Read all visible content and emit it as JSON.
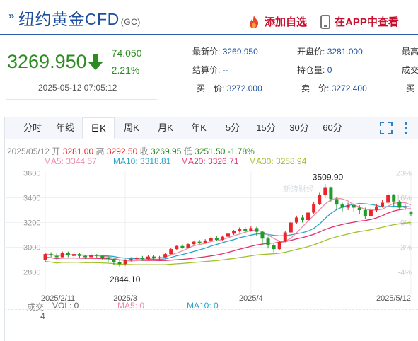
{
  "header": {
    "title": "纽约黄金CFD",
    "code": "(GC)",
    "add_watch_label": "添加自选",
    "app_view_label": "在APP中查看"
  },
  "quote": {
    "price": "3269.950",
    "change": "-74.050",
    "change_pct": "-2.21%",
    "timestamp": "2025-05-12 07:05:12"
  },
  "stats": {
    "latest_label": "最新价:",
    "latest_value": "3269.950",
    "open_label": "开盘价:",
    "open_value": "3281.000",
    "high_label": "最高",
    "settle_label": "结算价:",
    "settle_value": "--",
    "oi_label": "持仓量:",
    "oi_value": "0",
    "deal_label": "成交",
    "buy_label": "买　价:",
    "buy_value": "3272.000",
    "sell_label": "卖　价:",
    "sell_value": "3272.400",
    "buy2_label": "买"
  },
  "tabs": [
    "分时",
    "年线",
    "日K",
    "周K",
    "月K",
    "年K",
    "5分",
    "15分",
    "30分",
    "60分"
  ],
  "active_tab": "日K",
  "ohlc": {
    "date": "2025/05/12",
    "open_label": "开",
    "open": "3281.00",
    "high_label": "高",
    "high": "3292.50",
    "close_label": "收",
    "close": "3269.95",
    "low_label": "低",
    "low": "3251.50",
    "pct": "-1.78%"
  },
  "ma_legend": {
    "ma5": "MA5: 3344.57",
    "ma10": "MA10: 3318.81",
    "ma20": "MA20: 3326.71",
    "ma30": "MA30: 3258.94"
  },
  "colors": {
    "up": "#e8272d",
    "down": "#1e9b2a",
    "ma5": "#f08aa6",
    "ma10": "#29a6c9",
    "ma20": "#e0306b",
    "ma30": "#a0c12a",
    "brand": "#1d4f9c"
  },
  "watermark": "新浪财经",
  "volume": {
    "deal_label": "成交",
    "vol": "VOL: 0",
    "ma5": "MA5: 0",
    "ma10": "MA10: 0",
    "unit_value": "4"
  },
  "chart_data": {
    "type": "candlestick",
    "y_ticks": [
      "3600",
      "3400",
      "3200",
      "3000",
      "2800"
    ],
    "y_pct_ticks": [
      "23%",
      "16%",
      "9%",
      "3%",
      "-4%"
    ],
    "x_ticks": [
      "2025/2/11",
      "2025/3",
      "2025/4",
      "2025/5/12"
    ],
    "ylim": [
      2700,
      3620
    ],
    "annotations": [
      {
        "label": "3509.90",
        "value": 3509.9
      },
      {
        "label": "2844.10",
        "value": 2844.1
      }
    ],
    "candles": [
      [
        2900,
        2945,
        2955,
        2880
      ],
      [
        2945,
        2935,
        2960,
        2920
      ],
      [
        2930,
        2920,
        2950,
        2900
      ],
      [
        2920,
        2955,
        2965,
        2910
      ],
      [
        2955,
        2935,
        2965,
        2920
      ],
      [
        2930,
        2945,
        2950,
        2915
      ],
      [
        2945,
        2930,
        2955,
        2915
      ],
      [
        2930,
        2920,
        2940,
        2905
      ],
      [
        2920,
        2940,
        2950,
        2910
      ],
      [
        2940,
        2930,
        2945,
        2915
      ],
      [
        2930,
        2915,
        2940,
        2900
      ],
      [
        2915,
        2905,
        2930,
        2880
      ],
      [
        2905,
        2880,
        2915,
        2860
      ],
      [
        2880,
        2865,
        2895,
        2844
      ],
      [
        2865,
        2895,
        2905,
        2850
      ],
      [
        2895,
        2905,
        2920,
        2885
      ],
      [
        2905,
        2915,
        2925,
        2895
      ],
      [
        2915,
        2905,
        2930,
        2890
      ],
      [
        2905,
        2925,
        2935,
        2895
      ],
      [
        2925,
        2910,
        2935,
        2900
      ],
      [
        2910,
        2920,
        2930,
        2900
      ],
      [
        2920,
        2945,
        2955,
        2910
      ],
      [
        2945,
        2985,
        2995,
        2935
      ],
      [
        2985,
        3010,
        3020,
        2975
      ],
      [
        3010,
        2995,
        3025,
        2985
      ],
      [
        2995,
        3025,
        3035,
        2990
      ],
      [
        3025,
        3045,
        3055,
        3015
      ],
      [
        3045,
        3035,
        3060,
        3025
      ],
      [
        3035,
        3055,
        3065,
        3030
      ],
      [
        3055,
        3075,
        3085,
        3045
      ],
      [
        3075,
        3060,
        3090,
        3050
      ],
      [
        3060,
        3085,
        3095,
        3055
      ],
      [
        3085,
        3110,
        3120,
        3080
      ],
      [
        3110,
        3130,
        3140,
        3100
      ],
      [
        3130,
        3150,
        3160,
        3120
      ],
      [
        3150,
        3130,
        3165,
        3115
      ],
      [
        3130,
        3155,
        3170,
        3125
      ],
      [
        3155,
        3125,
        3165,
        3090
      ],
      [
        3125,
        3070,
        3135,
        3020
      ],
      [
        3070,
        3020,
        3085,
        2990
      ],
      [
        3020,
        2985,
        3030,
        2960
      ],
      [
        2985,
        3045,
        3055,
        2975
      ],
      [
        3045,
        3120,
        3130,
        3040
      ],
      [
        3120,
        3200,
        3215,
        3110
      ],
      [
        3200,
        3240,
        3255,
        3190
      ],
      [
        3240,
        3220,
        3260,
        3200
      ],
      [
        3220,
        3280,
        3295,
        3210
      ],
      [
        3280,
        3350,
        3365,
        3270
      ],
      [
        3350,
        3420,
        3440,
        3340
      ],
      [
        3420,
        3480,
        3509.9,
        3400
      ],
      [
        3480,
        3390,
        3490,
        3370
      ],
      [
        3390,
        3345,
        3405,
        3300
      ],
      [
        3345,
        3320,
        3360,
        3290
      ],
      [
        3320,
        3340,
        3360,
        3300
      ],
      [
        3340,
        3320,
        3355,
        3290
      ],
      [
        3320,
        3300,
        3340,
        3270
      ],
      [
        3300,
        3250,
        3320,
        3230
      ],
      [
        3250,
        3300,
        3320,
        3240
      ],
      [
        3300,
        3330,
        3345,
        3285
      ],
      [
        3330,
        3360,
        3380,
        3320
      ],
      [
        3360,
        3420,
        3435,
        3350
      ],
      [
        3420,
        3370,
        3430,
        3330
      ],
      [
        3370,
        3320,
        3380,
        3300
      ],
      [
        3320,
        3330,
        3345,
        3300
      ],
      [
        3281,
        3270,
        3292.5,
        3251.5
      ]
    ]
  }
}
